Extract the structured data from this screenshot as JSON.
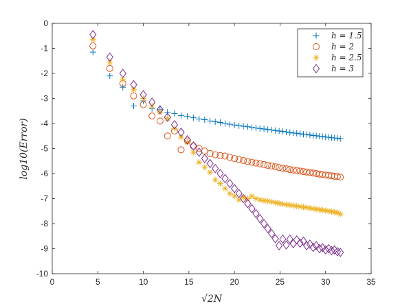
{
  "chart_data": {
    "type": "scatter",
    "xlabel": "√2N",
    "ylabel": "log10(Error)",
    "xlim": [
      0,
      35
    ],
    "ylim": [
      -10,
      0
    ],
    "x_ticks": [
      "0",
      "5",
      "10",
      "15",
      "20",
      "25",
      "30",
      "35"
    ],
    "y_ticks": [
      "0",
      "-1",
      "-2",
      "-3",
      "-4",
      "-5",
      "-6",
      "-7",
      "-8",
      "-9",
      "-10"
    ],
    "grid": false,
    "legend_position": "top-right",
    "series": [
      {
        "name": "h = 1.5",
        "marker": "plus",
        "color": "#0072BD",
        "x": [
          4.47,
          6.32,
          7.75,
          8.94,
          10.0,
          10.95,
          11.83,
          12.65,
          13.42,
          14.14,
          14.83,
          15.49,
          16.12,
          16.73,
          17.32,
          17.89,
          18.44,
          18.97,
          19.49,
          20.0,
          20.49,
          20.98,
          21.45,
          21.91,
          22.36,
          22.8,
          23.24,
          23.66,
          24.08,
          24.49,
          24.9,
          25.3,
          25.69,
          26.08,
          26.46,
          26.83,
          27.2,
          27.57,
          27.93,
          28.28,
          28.64,
          28.98,
          29.33,
          29.66,
          30.0,
          30.33,
          30.66,
          30.98,
          31.3,
          31.62
        ],
        "y": [
          -1.15,
          -2.1,
          -2.55,
          -3.3,
          -3.1,
          -3.4,
          -3.45,
          -3.55,
          -3.6,
          -3.68,
          -3.72,
          -3.77,
          -3.82,
          -3.85,
          -3.9,
          -3.93,
          -3.96,
          -4.0,
          -4.03,
          -4.06,
          -4.09,
          -4.11,
          -4.13,
          -4.16,
          -4.18,
          -4.2,
          -4.22,
          -4.24,
          -4.26,
          -4.28,
          -4.3,
          -4.32,
          -4.34,
          -4.36,
          -4.38,
          -4.39,
          -4.41,
          -4.43,
          -4.44,
          -4.46,
          -4.48,
          -4.49,
          -4.51,
          -4.52,
          -4.54,
          -4.55,
          -4.57,
          -4.58,
          -4.59,
          -4.61
        ]
      },
      {
        "name": "h = 2",
        "marker": "circle",
        "color": "#D95319",
        "x": [
          4.47,
          6.32,
          7.75,
          8.94,
          10.0,
          10.95,
          11.83,
          12.65,
          13.42,
          14.14,
          14.83,
          15.49,
          16.12,
          16.73,
          17.32,
          17.89,
          18.44,
          18.97,
          19.49,
          20.0,
          20.49,
          20.98,
          21.45,
          21.91,
          22.36,
          22.8,
          23.24,
          23.66,
          24.08,
          24.49,
          24.9,
          25.3,
          25.69,
          26.08,
          26.46,
          26.83,
          27.2,
          27.57,
          27.93,
          28.28,
          28.64,
          28.98,
          29.33,
          29.66,
          30.0,
          30.33,
          30.66,
          30.98,
          31.3,
          31.62
        ],
        "y": [
          -0.9,
          -1.8,
          -2.4,
          -2.9,
          -3.25,
          -3.7,
          -3.9,
          -4.5,
          -4.3,
          -5.05,
          -4.7,
          -4.9,
          -5.0,
          -5.1,
          -5.2,
          -5.25,
          -5.28,
          -5.3,
          -5.35,
          -5.4,
          -5.44,
          -5.48,
          -5.52,
          -5.55,
          -5.58,
          -5.61,
          -5.64,
          -5.67,
          -5.7,
          -5.73,
          -5.76,
          -5.79,
          -5.81,
          -5.84,
          -5.86,
          -5.88,
          -5.9,
          -5.92,
          -5.94,
          -5.96,
          -5.98,
          -6.0,
          -6.02,
          -6.04,
          -6.06,
          -6.07,
          -6.09,
          -6.11,
          -6.12,
          -6.14
        ]
      },
      {
        "name": "h = 2.5",
        "marker": "asterisk",
        "color": "#EDB120",
        "x": [
          4.47,
          6.32,
          7.75,
          8.94,
          10.0,
          10.95,
          11.83,
          12.65,
          13.42,
          14.14,
          14.83,
          15.49,
          16.12,
          16.73,
          17.32,
          17.89,
          18.44,
          18.97,
          19.49,
          20.0,
          20.49,
          20.98,
          21.45,
          21.91,
          22.36,
          22.8,
          23.24,
          23.66,
          24.08,
          24.49,
          24.9,
          25.3,
          25.69,
          26.08,
          26.46,
          26.83,
          27.2,
          27.57,
          27.93,
          28.28,
          28.64,
          28.98,
          29.33,
          29.66,
          30.0,
          30.33,
          30.66,
          30.98,
          31.3,
          31.62
        ],
        "y": [
          -0.65,
          -1.55,
          -2.25,
          -2.65,
          -3.0,
          -3.3,
          -3.55,
          -3.8,
          -4.2,
          -4.55,
          -4.75,
          -5.15,
          -5.55,
          -5.75,
          -5.95,
          -6.25,
          -6.4,
          -6.6,
          -6.8,
          -6.9,
          -7.05,
          -6.95,
          -7.0,
          -6.9,
          -7.0,
          -7.05,
          -7.08,
          -7.1,
          -7.13,
          -7.16,
          -7.19,
          -7.22,
          -7.24,
          -7.26,
          -7.28,
          -7.3,
          -7.32,
          -7.34,
          -7.36,
          -7.38,
          -7.4,
          -7.42,
          -7.44,
          -7.46,
          -7.48,
          -7.5,
          -7.52,
          -7.54,
          -7.56,
          -7.62
        ]
      },
      {
        "name": "h = 3",
        "marker": "diamond",
        "color": "#7E2F8E",
        "x": [
          4.47,
          6.32,
          7.75,
          8.94,
          10.0,
          10.95,
          11.83,
          12.65,
          13.42,
          14.14,
          14.83,
          15.49,
          16.12,
          16.73,
          17.32,
          17.89,
          18.44,
          18.97,
          19.49,
          20.0,
          20.49,
          20.98,
          21.45,
          21.91,
          22.36,
          22.8,
          23.24,
          23.66,
          24.08,
          24.49,
          24.9,
          25.3,
          25.69,
          26.08,
          26.46,
          26.83,
          27.2,
          27.57,
          27.93,
          28.28,
          28.64,
          28.98,
          29.33,
          29.66,
          30.0,
          30.33,
          30.66,
          30.98,
          31.3,
          31.62
        ],
        "y": [
          -0.45,
          -1.35,
          -2.0,
          -2.45,
          -2.85,
          -3.15,
          -3.45,
          -3.75,
          -4.05,
          -4.35,
          -4.65,
          -4.9,
          -5.15,
          -5.4,
          -5.6,
          -5.8,
          -6.0,
          -6.2,
          -6.4,
          -6.6,
          -6.8,
          -7.0,
          -7.2,
          -7.4,
          -7.6,
          -7.8,
          -8.0,
          -8.2,
          -8.4,
          -8.6,
          -8.88,
          -8.62,
          -8.85,
          -8.62,
          -8.8,
          -8.65,
          -8.78,
          -8.7,
          -8.88,
          -8.82,
          -8.95,
          -8.88,
          -9.0,
          -8.96,
          -9.05,
          -9.0,
          -9.08,
          -9.05,
          -9.12,
          -9.15
        ]
      }
    ]
  }
}
